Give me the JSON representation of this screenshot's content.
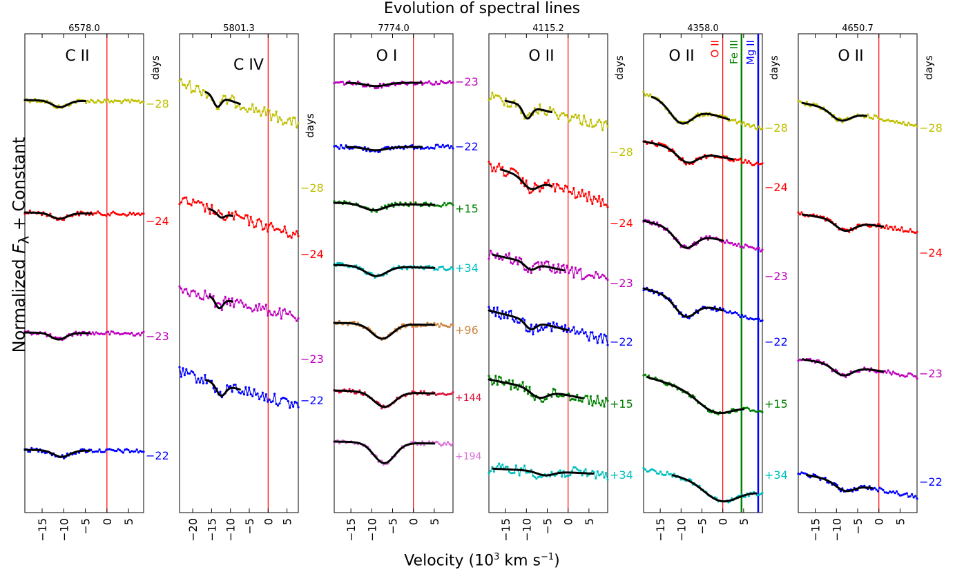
{
  "figure": {
    "title": "Evolution of spectral lines",
    "ylabel_main": "Normalized ",
    "ylabel_var": "F",
    "ylabel_sub": "λ",
    "ylabel_rest": " + Constant",
    "xlabel_main": "Velocity (10",
    "xlabel_exp": "3",
    "xlabel_units": "  km s",
    "xlabel_units_exp": "−1",
    "xlabel_close": ")",
    "days_label": "days"
  },
  "colors": {
    "-28": "#bfbf00",
    "-24": "#ff0000",
    "-23": "#bf00bf",
    "-22": "#0000ff",
    "+15": "#008000",
    "+34": "#00bfbf",
    "+96": "#cd853f",
    "+144": "#dc143c",
    "+194": "#da70d6",
    "fit": "#000000",
    "zero_line": "#ff0000",
    "fe_iii_line": "#008000",
    "mg_ii_line": "#0000ff"
  },
  "chart_data": [
    {
      "type": "line",
      "title": "6578.0",
      "ion": "C II",
      "xlabel": "",
      "ylabel": "",
      "xlim": [
        -19,
        8.5
      ],
      "xticks": [
        -15,
        -10,
        -5,
        0,
        5
      ],
      "xtick_labels": [
        "−15",
        "−10",
        "−5",
        "0",
        "5"
      ],
      "reference_lines": [
        {
          "x": 0,
          "color": "#ff0000"
        }
      ],
      "series": [
        {
          "epoch": "-28",
          "label": "−28",
          "label_side": "right",
          "offset": 0.0,
          "v_min": -10.9,
          "depth": 0.08,
          "width": 1.8,
          "fit_range": [
            -19,
            -5
          ]
        },
        {
          "epoch": "-24",
          "label": "−24",
          "label_side": "right",
          "offset": -1.0,
          "v_min": -11.0,
          "depth": 0.07,
          "width": 1.8,
          "fit_range": [
            -19,
            -3.5
          ]
        },
        {
          "epoch": "-23",
          "label": "−23",
          "label_side": "right",
          "offset": -2.0,
          "v_min": -11.2,
          "depth": 0.08,
          "width": 1.7,
          "fit_range": [
            -19,
            -4
          ]
        },
        {
          "epoch": "-22",
          "label": "−22",
          "label_side": "right",
          "offset": -3.0,
          "v_min": -10.5,
          "depth": 0.08,
          "width": 1.9,
          "fit_range": [
            -19,
            -4
          ]
        }
      ]
    },
    {
      "type": "line",
      "title": "5801.3",
      "ion": "C IV",
      "xlabel": "",
      "ylabel": "",
      "xlim": [
        -23.5,
        8
      ],
      "xticks": [
        -20,
        -15,
        -10,
        -5,
        0,
        5
      ],
      "xtick_labels": [
        "−20",
        "−15",
        "−10",
        "−5",
        "0",
        "5"
      ],
      "reference_lines": [
        {
          "x": 0,
          "color": "#ff0000"
        }
      ],
      "series": [
        {
          "epoch": "-28",
          "label": "−28",
          "label_side": "right",
          "offset": 0.0,
          "v_min": -13.5,
          "depth": 0.13,
          "width": 1.0,
          "fit_range": [
            -16.5,
            -7.5
          ]
        },
        {
          "epoch": "-24",
          "label": "−24",
          "label_side": "right",
          "offset": -1.0,
          "v_min": -12.5,
          "depth": 0.06,
          "width": 1.0,
          "fit_range": [
            -15.5,
            -9.5
          ]
        },
        {
          "epoch": "-23",
          "label": "−23",
          "label_side": "right",
          "offset": -2.0,
          "v_min": -13.0,
          "depth": 0.12,
          "width": 1.0,
          "fit_range": [
            -15.5,
            -9.5
          ]
        },
        {
          "epoch": "-22",
          "label": "−22",
          "label_side": "right",
          "offset": -3.0,
          "v_min": -12.5,
          "depth": 0.14,
          "width": 1.2,
          "fit_range": [
            -16.5,
            -7.5
          ]
        }
      ]
    },
    {
      "type": "line",
      "title": "7774.0",
      "ion": "O I",
      "xlabel": "",
      "ylabel": "",
      "xlim": [
        -19,
        9.5
      ],
      "xticks": [
        -15,
        -10,
        -5,
        0,
        5
      ],
      "xtick_labels": [
        "−15",
        "−10",
        "−5",
        "0",
        "5"
      ],
      "reference_lines": [
        {
          "x": 0,
          "color": "#ff0000"
        }
      ],
      "series": [
        {
          "epoch": "-23",
          "label": "−23",
          "label_side": "right",
          "offset": 0.0,
          "v_min": -9.0,
          "depth": 0.04,
          "width": 2.5,
          "fit_range": [
            -16,
            2
          ]
        },
        {
          "epoch": "-22",
          "label": "−22",
          "label_side": "right",
          "offset": -1.0,
          "v_min": -9.0,
          "depth": 0.04,
          "width": 2.5,
          "fit_range": [
            -16,
            2
          ]
        },
        {
          "epoch": "+15",
          "label": "+15",
          "label_side": "right",
          "offset": -2.0,
          "v_min": -9.5,
          "depth": 0.08,
          "width": 2.5,
          "fit_range": [
            -19,
            5
          ]
        },
        {
          "epoch": "+34",
          "label": "+34",
          "label_side": "right",
          "offset": -3.0,
          "v_min": -9.0,
          "depth": 0.12,
          "width": 2.5,
          "fit_range": [
            -19,
            5
          ]
        },
        {
          "epoch": "+96",
          "label": "+96",
          "label_side": "right",
          "offset": -4.0,
          "v_min": -7.5,
          "depth": 0.18,
          "width": 2.5,
          "fit_range": [
            -19,
            5
          ]
        },
        {
          "epoch": "+144",
          "label": "+144",
          "label_side": "right",
          "offset": -5.0,
          "v_min": -7.0,
          "depth": 0.18,
          "width": 2.5,
          "fit_range": [
            -19,
            5
          ]
        },
        {
          "epoch": "+194",
          "label": "+194",
          "label_side": "right",
          "offset": -6.0,
          "v_min": -7.0,
          "depth": 0.25,
          "width": 2.5,
          "fit_range": [
            -19,
            5
          ]
        }
      ]
    },
    {
      "type": "line",
      "title": "4115.2",
      "ion": "O II",
      "xlabel": "",
      "ylabel": "",
      "xlim": [
        -19,
        9.5
      ],
      "xticks": [
        -15,
        -10,
        -5,
        0,
        5
      ],
      "xtick_labels": [
        "−15",
        "−10",
        "−5",
        "0",
        "5"
      ],
      "reference_lines": [
        {
          "x": 0,
          "color": "#ff0000"
        }
      ],
      "series": [
        {
          "epoch": "-28",
          "label": "−28",
          "label_side": "right",
          "offset": 0.0,
          "v_min": -9.8,
          "depth": 0.15,
          "width": 1.0,
          "fit_range": [
            -15,
            -4
          ]
        },
        {
          "epoch": "-24",
          "label": "−24",
          "label_side": "right",
          "offset": -1.0,
          "v_min": -9.0,
          "depth": 0.12,
          "width": 1.8,
          "fit_range": [
            -16,
            -4
          ]
        },
        {
          "epoch": "-23",
          "label": "−23",
          "label_side": "right",
          "offset": -2.0,
          "v_min": -9.0,
          "depth": 0.08,
          "width": 1.3,
          "fit_range": [
            -18,
            -1
          ]
        },
        {
          "epoch": "-22",
          "label": "−22",
          "label_side": "right",
          "offset": -3.0,
          "v_min": -9.0,
          "depth": 0.1,
          "width": 1.3,
          "fit_range": [
            -19,
            0
          ]
        },
        {
          "epoch": "+15",
          "label": "+15",
          "label_side": "right",
          "offset": -4.0,
          "v_min": -7.0,
          "depth": 0.1,
          "width": 2.0,
          "fit_range": [
            -19,
            3.5
          ]
        },
        {
          "epoch": "+34",
          "label": "+34",
          "label_side": "right",
          "offset": -5.0,
          "v_min": -5.5,
          "depth": 0.05,
          "width": 2.0,
          "fit_range": [
            -18,
            6
          ]
        }
      ]
    },
    {
      "type": "line",
      "title": "4358.0",
      "ion": "O II",
      "xlabel": "",
      "ylabel": "",
      "xlim": [
        -19,
        9.5
      ],
      "xticks": [
        -15,
        -10,
        -5,
        0,
        5
      ],
      "xtick_labels": [
        "−15",
        "−10",
        "−5",
        "0",
        "5"
      ],
      "reference_lines": [
        {
          "x": 0,
          "color": "#ff0000",
          "label": "O II"
        },
        {
          "x": 4.5,
          "color": "#008000",
          "label": "Fe III"
        },
        {
          "x": 8.5,
          "color": "#0000ff",
          "label": "Mg II"
        }
      ],
      "series": [
        {
          "epoch": "-28",
          "label": "−28",
          "label_side": "right",
          "offset": 0.0,
          "v_min": -10.0,
          "depth": 0.22,
          "width": 2.6,
          "fit_range": [
            -17,
            1.5
          ]
        },
        {
          "epoch": "-24",
          "label": "−24",
          "label_side": "right",
          "offset": -1.0,
          "v_min": -8.5,
          "depth": 0.15,
          "width": 2.4,
          "fit_range": [
            -19,
            2.5
          ]
        },
        {
          "epoch": "-23",
          "label": "−23",
          "label_side": "right",
          "offset": -2.0,
          "v_min": -9.0,
          "depth": 0.2,
          "width": 2.4,
          "fit_range": [
            -19,
            0
          ]
        },
        {
          "epoch": "-22",
          "label": "−22",
          "label_side": "right",
          "offset": -3.0,
          "v_min": -9.0,
          "depth": 0.2,
          "width": 2.4,
          "fit_range": [
            -19,
            0
          ]
        },
        {
          "epoch": "+15",
          "label": "+15",
          "label_side": "right",
          "offset": -4.0,
          "v_min": -2.0,
          "depth": 0.18,
          "width": 4.0,
          "fit_range": [
            -18,
            5
          ]
        },
        {
          "epoch": "+34",
          "label": "+34",
          "label_side": "right",
          "offset": -5.0,
          "v_min": -0.5,
          "depth": 0.2,
          "width": 4.0,
          "fit_range": [
            -12,
            8
          ]
        }
      ]
    },
    {
      "type": "line",
      "title": "4650.7",
      "ion": "O II",
      "xlabel": "",
      "ylabel": "",
      "xlim": [
        -19,
        9
      ],
      "xticks": [
        -15,
        -10,
        -5,
        0,
        5
      ],
      "xtick_labels": [
        "−15",
        "−10",
        "−5",
        "0",
        "5"
      ],
      "reference_lines": [
        {
          "x": 0,
          "color": "#ff0000"
        }
      ],
      "series": [
        {
          "epoch": "-28",
          "label": "−28",
          "label_side": "right",
          "offset": 0.0,
          "v_min": -9.0,
          "depth": 0.12,
          "width": 2.2,
          "fit_range": [
            -18,
            -3
          ]
        },
        {
          "epoch": "-24",
          "label": "−24",
          "label_side": "right",
          "offset": -1.0,
          "v_min": -8.0,
          "depth": 0.12,
          "width": 2.2,
          "fit_range": [
            -18,
            1
          ]
        },
        {
          "epoch": "-23",
          "label": "−23",
          "label_side": "right",
          "offset": -2.0,
          "v_min": -8.5,
          "depth": 0.12,
          "width": 2.2,
          "fit_range": [
            -18,
            1
          ]
        },
        {
          "epoch": "-22",
          "label": "−22",
          "label_side": "right",
          "offset": -3.0,
          "v_min": -8.0,
          "depth": 0.1,
          "width": 2.2,
          "fit_range": [
            -17,
            -1.5
          ]
        }
      ]
    }
  ]
}
